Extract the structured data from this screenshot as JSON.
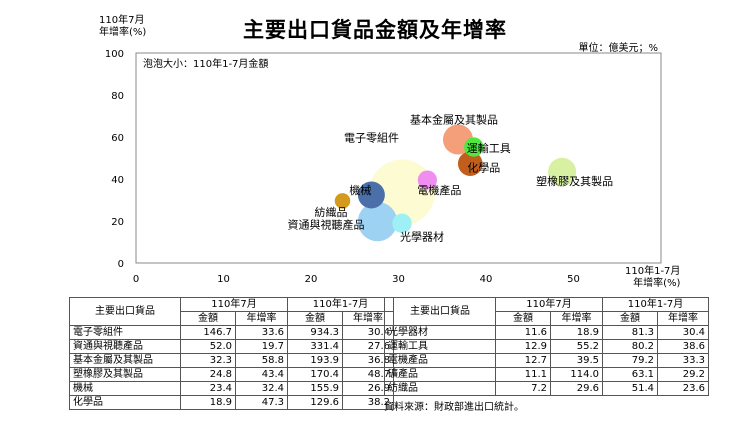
{
  "title": "主要出口貨品金額及年增率",
  "unit": "單位：億美元；%",
  "y_axis_title": [
    "110年7月",
    "年增率(%)"
  ],
  "x_axis_title": [
    "110年1-7月",
    "年增率(%)"
  ],
  "legend_note": "泡泡大小：110年1-7月金額",
  "source": "資料來源：財政部進出口統計。",
  "chart_data": {
    "type": "scatter",
    "subtype": "bubble",
    "title": "主要出口貨品金額及年增率",
    "xlabel": "110年1-7月 年增率(%)",
    "ylabel": "110年7月 年增率(%)",
    "xlim": [
      0,
      60
    ],
    "ylim": [
      0,
      100
    ],
    "x_ticks": [
      0,
      10,
      20,
      30,
      40,
      50
    ],
    "y_ticks": [
      0,
      20,
      40,
      60,
      80,
      100
    ],
    "points": [
      {
        "label": "電子零組件",
        "x": 30.4,
        "y": 33.6,
        "size": 934.3,
        "color": "#fdfbd2"
      },
      {
        "label": "資通與視聽產品",
        "x": 27.6,
        "y": 19.7,
        "size": 331.4,
        "color": "#9ed2f3"
      },
      {
        "label": "基本金屬及其製品",
        "x": 36.8,
        "y": 58.8,
        "size": 193.9,
        "color": "#f49f7a"
      },
      {
        "label": "塑橡膠及其製品",
        "x": 48.7,
        "y": 43.4,
        "size": 170.4,
        "color": "#d8f0a2"
      },
      {
        "label": "機械",
        "x": 26.9,
        "y": 32.4,
        "size": 155.9,
        "color": "#4a6fa9"
      },
      {
        "label": "化學品",
        "x": 38.2,
        "y": 47.3,
        "size": 129.6,
        "color": "#c25e1c"
      },
      {
        "label": "光學器材",
        "x": 30.4,
        "y": 18.9,
        "size": 81.3,
        "color": "#9ff0f5"
      },
      {
        "label": "運輸工具",
        "x": 38.6,
        "y": 55.2,
        "size": 80.2,
        "color": "#4ee83e"
      },
      {
        "label": "電機產品",
        "x": 33.3,
        "y": 39.5,
        "size": 79.2,
        "color": "#f08ef0"
      },
      {
        "label": "紡織品",
        "x": 23.6,
        "y": 29.6,
        "size": 51.4,
        "color": "#d49a1e"
      }
    ]
  },
  "tables": [
    {
      "header_item": "主要出口貨品",
      "group_headers": [
        "110年7月",
        "110年1-7月"
      ],
      "sub_headers": [
        "金額",
        "年增率",
        "金額",
        "年增率"
      ],
      "rows": [
        [
          "電子零組件",
          "146.7",
          "33.6",
          "934.3",
          "30.4"
        ],
        [
          "資通與視聽產品",
          "52.0",
          "19.7",
          "331.4",
          "27.6"
        ],
        [
          "基本金屬及其製品",
          "32.3",
          "58.8",
          "193.9",
          "36.8"
        ],
        [
          "塑橡膠及其製品",
          "24.8",
          "43.4",
          "170.4",
          "48.7"
        ],
        [
          "機械",
          "23.4",
          "32.4",
          "155.9",
          "26.9"
        ],
        [
          "化學品",
          "18.9",
          "47.3",
          "129.6",
          "38.2"
        ]
      ]
    },
    {
      "header_item": "主要出口貨品",
      "group_headers": [
        "110年7月",
        "110年1-7月"
      ],
      "sub_headers": [
        "金額",
        "年增率",
        "金額",
        "年增率"
      ],
      "rows": [
        [
          "光學器材",
          "11.6",
          "18.9",
          "81.3",
          "30.4"
        ],
        [
          "運輸工具",
          "12.9",
          "55.2",
          "80.2",
          "38.6"
        ],
        [
          "電機產品",
          "12.7",
          "39.5",
          "79.2",
          "33.3"
        ],
        [
          "礦產品",
          "11.1",
          "114.0",
          "63.1",
          "29.2"
        ],
        [
          "紡織品",
          "7.2",
          "29.6",
          "51.4",
          "23.6"
        ]
      ]
    }
  ]
}
